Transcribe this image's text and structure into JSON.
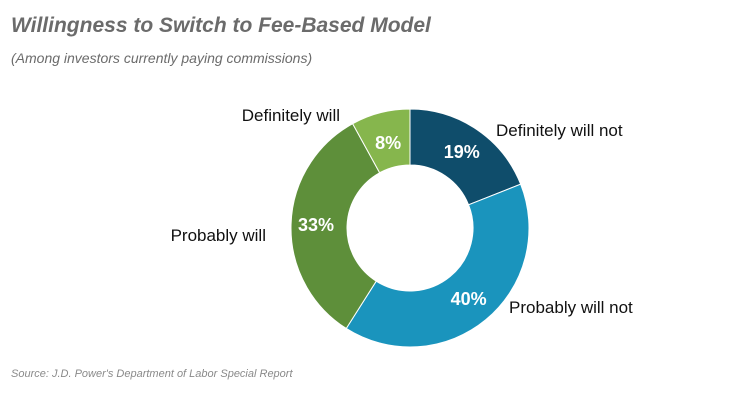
{
  "title": "Willingness to Switch to Fee-Based Model",
  "subtitle": "(Among investors currently paying commissions)",
  "source": "Source: J.D. Power's Department of Labor Special Report",
  "chart_data": {
    "type": "pie",
    "donut": true,
    "title": "Willingness to Switch to Fee-Based Model",
    "subtitle": "(Among investors currently paying commissions)",
    "categories": [
      "Definitely will not",
      "Probably will not",
      "Probably will",
      "Definitely will"
    ],
    "values": [
      19,
      40,
      33,
      8
    ],
    "value_labels": [
      "19%",
      "40%",
      "33%",
      "8%"
    ],
    "colors": [
      "#0f4d6b",
      "#1a94bd",
      "#5e8f3a",
      "#86b64d"
    ],
    "legend": "none",
    "start": "12 o'clock, clockwise"
  }
}
